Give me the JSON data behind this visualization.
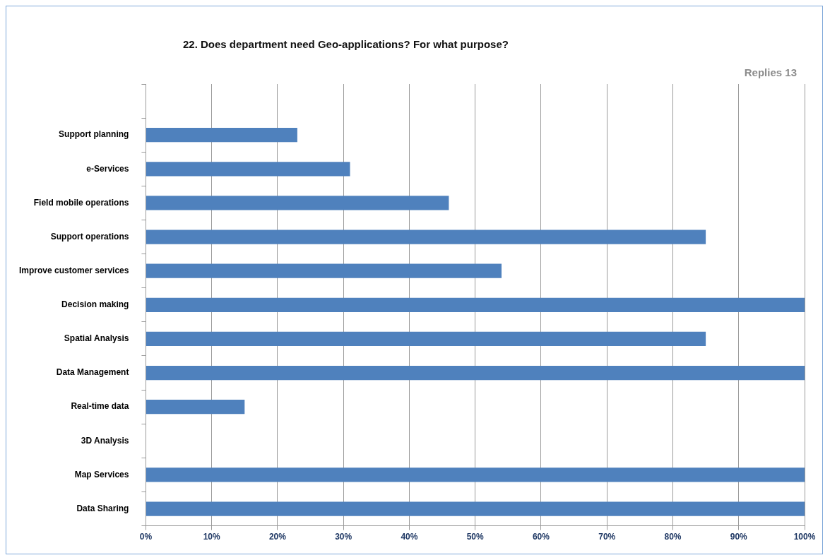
{
  "chart_data": {
    "type": "bar",
    "orientation": "horizontal",
    "title": "22. Does department need Geo-applications? For what purpose?",
    "subtitle": "Replies 13",
    "categories": [
      null,
      "Support planning",
      "e-Services",
      "Field mobile operations",
      "Support operations",
      "Improve customer services",
      "Decision making",
      "Spatial Analysis",
      "Data Management",
      "Real-time data",
      "3D Analysis",
      "Map Services",
      "Data Sharing"
    ],
    "values": [
      null,
      23,
      31,
      46,
      85,
      54,
      100,
      85,
      100,
      15,
      0,
      100,
      100
    ],
    "color": "#4f81bd",
    "xlim": [
      0,
      100
    ],
    "xticks": [
      {
        "value": 0,
        "label": "0%"
      },
      {
        "value": 10,
        "label": "10%"
      },
      {
        "value": 20,
        "label": "20%"
      },
      {
        "value": 30,
        "label": "30%"
      },
      {
        "value": 40,
        "label": "40%"
      },
      {
        "value": 50,
        "label": "50%"
      },
      {
        "value": 60,
        "label": "60%"
      },
      {
        "value": 70,
        "label": "70%"
      },
      {
        "value": 80,
        "label": "80%"
      },
      {
        "value": 90,
        "label": "90%"
      },
      {
        "value": 100,
        "label": "100%"
      }
    ],
    "grid": "x",
    "legend": false
  }
}
